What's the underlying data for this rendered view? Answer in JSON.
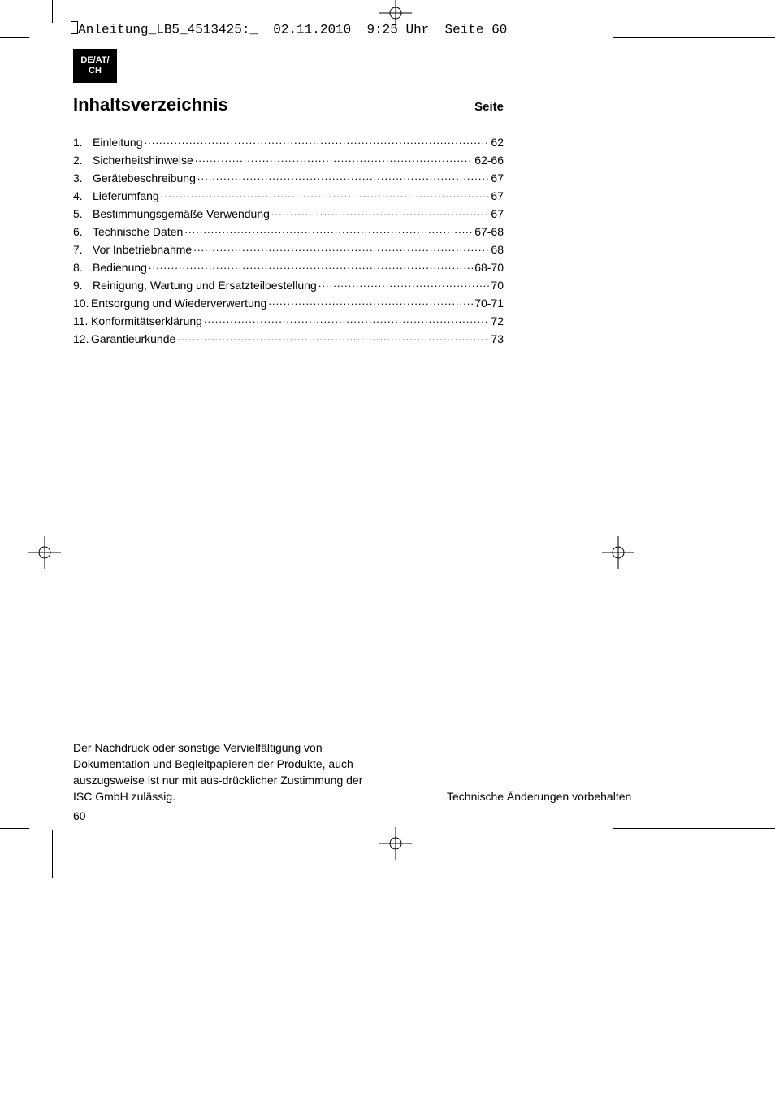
{
  "job_header": "Anleitung_LB5_4513425:_  02.11.2010  9:25 Uhr  Seite 60",
  "lang_badge": {
    "line1": "DE/AT/",
    "line2": "CH"
  },
  "title": "Inhaltsverzeichnis",
  "page_label": "Seite",
  "toc": [
    {
      "n": "1.",
      "label": "Einleitung",
      "page": "62"
    },
    {
      "n": "2.",
      "label": "Sicherheitshinweise",
      "page": "62-66"
    },
    {
      "n": "3.",
      "label": "Gerätebeschreibung",
      "page": "67"
    },
    {
      "n": "4.",
      "label": "Lieferumfang",
      "page": "67"
    },
    {
      "n": "5.",
      "label": "Bestimmungsgemäße Verwendung",
      "page": "67"
    },
    {
      "n": "6.",
      "label": "Technische Daten",
      "page": "67-68"
    },
    {
      "n": "7.",
      "label": "Vor Inbetriebnahme",
      "page": "68"
    },
    {
      "n": "8.",
      "label": "Bedienung",
      "page": "68-70"
    },
    {
      "n": "9.",
      "label": "Reinigung, Wartung und Ersatzteilbestellung",
      "page": "70"
    },
    {
      "n": "10.",
      "label": "Entsorgung und Wiederverwertung ",
      "page": "70-71"
    },
    {
      "n": "11.",
      "label": "Konformitätserklärung",
      "page": "72"
    },
    {
      "n": "12.",
      "label": "Garantieurkunde",
      "page": "73"
    }
  ],
  "legal": "Der Nachdruck oder sonstige Vervielfältigung von Dokumentation und Begleitpapieren der Produkte, auch auszugsweise ist nur mit aus-drücklicher Zustimmung der ISC GmbH zulässig.",
  "tech_note": "Technische Änderungen vorbehalten",
  "page_number": "60",
  "colors": {
    "text": "#000000",
    "bg": "#ffffff",
    "badge_bg": "#000000",
    "badge_fg": "#ffffff"
  },
  "fonts": {
    "body": "Arial",
    "mono": "Courier New",
    "title_pt": 22,
    "body_pt": 14
  }
}
